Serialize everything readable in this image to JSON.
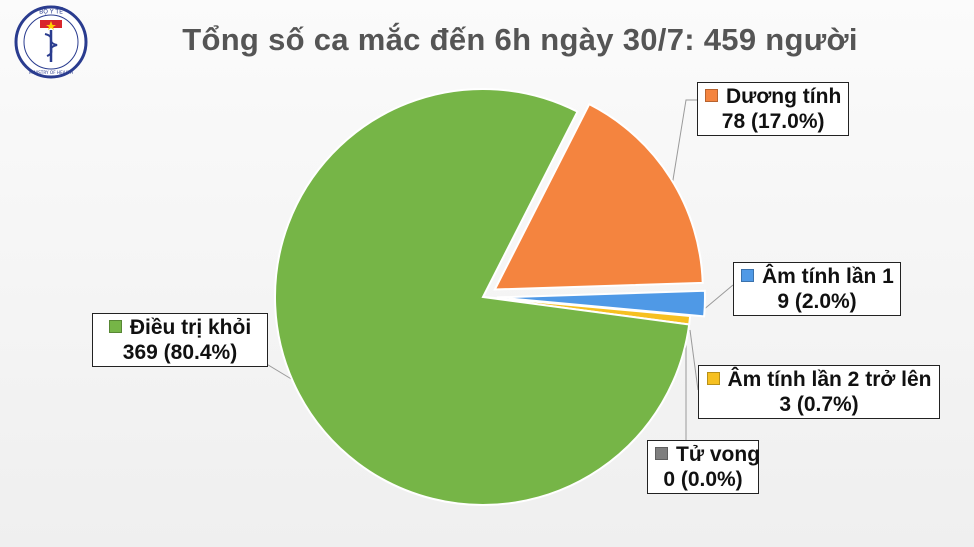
{
  "header": {
    "logo_text_top": "BỘ Y TẾ",
    "logo_text_bottom": "MINISTRY OF HEALTH"
  },
  "chart_data": {
    "type": "pie",
    "title": "Tổng số ca mắc đến 6h ngày 30/7: 459 người",
    "total": 459,
    "slices": [
      {
        "name": "Dương tính",
        "value": 78,
        "percent": "17.0%",
        "color": "#f4843f",
        "exploded": true
      },
      {
        "name": "Âm tính lần 1",
        "value": 9,
        "percent": "2.0%",
        "color": "#4f99e6",
        "exploded": true
      },
      {
        "name": "Âm tính lần 2 trở lên",
        "value": 3,
        "percent": "0.7%",
        "color": "#f6c021",
        "exploded": false
      },
      {
        "name": "Tử vong",
        "value": 0,
        "percent": "0.0%",
        "color": "#7f7f7f",
        "exploded": false
      },
      {
        "name": "Điều trị khỏi",
        "value": 369,
        "percent": "80.4%",
        "color": "#76b547",
        "exploded": false
      }
    ],
    "labels": [
      {
        "line1": "Dương tính",
        "line2": "78 (17.0%)"
      },
      {
        "line1": "Âm tính lần 1",
        "line2": "9 (2.0%)"
      },
      {
        "line1": "Âm tính lần 2 trở lên",
        "line2": "3 (0.7%)"
      },
      {
        "line1": "Tử vong",
        "line2": "0 (0.0%)"
      },
      {
        "line1": "Điều trị khỏi",
        "line2": "369 (80.4%)"
      }
    ]
  }
}
